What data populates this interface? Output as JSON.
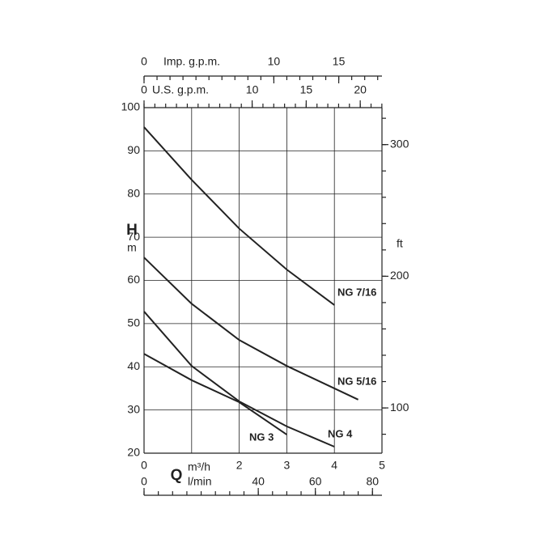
{
  "chart_data": {
    "type": "line",
    "y_label": "H",
    "y_unit": "m",
    "x_label": "Q",
    "ylim": [
      20,
      100
    ],
    "yticks": [
      20,
      30,
      40,
      50,
      60,
      70,
      80,
      90,
      100
    ],
    "y2_label": "ft",
    "y2lim": [
      65.62,
      328.08
    ],
    "y2ticks": [
      100,
      200,
      300
    ],
    "y2_minor_step": 20,
    "grid": true,
    "x_axes": [
      {
        "label": "m³/h",
        "xlim": [
          0,
          5
        ],
        "xticks": [
          0,
          2,
          3,
          4,
          5
        ],
        "grid_ticks": [
          1,
          2,
          3,
          4
        ]
      },
      {
        "label": "l/min",
        "xlim": [
          0,
          83.33
        ],
        "xticks": [
          0,
          40,
          60,
          80
        ],
        "minor_step": 5
      },
      {
        "label": "U.S. g.p.m.",
        "xlim": [
          0,
          22.01
        ],
        "xticks": [
          0,
          10,
          15,
          20
        ],
        "minor_step": 1
      },
      {
        "label": "Imp. g.p.m.",
        "xlim": [
          0,
          18.33
        ],
        "xticks": [
          0,
          10,
          15
        ],
        "minor_step": 1
      }
    ],
    "series": [
      {
        "name": "NG 7/16",
        "color": "#222222",
        "x": [
          0,
          1,
          2,
          3,
          4
        ],
        "values": [
          95.5,
          83.3,
          72,
          62.5,
          54.3
        ]
      },
      {
        "name": "NG 5/16",
        "color": "#222222",
        "x": [
          0,
          1,
          2,
          3,
          4,
          4.5
        ],
        "values": [
          65.3,
          54.6,
          46.2,
          40.2,
          35,
          32.4
        ]
      },
      {
        "name": "NG 4",
        "color": "#222222",
        "x": [
          0,
          1,
          2,
          3,
          4
        ],
        "values": [
          52.8,
          40.2,
          32,
          26.2,
          21.5
        ]
      },
      {
        "name": "NG 3",
        "color": "#222222",
        "x": [
          0,
          1,
          2,
          3
        ],
        "values": [
          43,
          36.9,
          31.8,
          24.3
        ]
      }
    ]
  }
}
